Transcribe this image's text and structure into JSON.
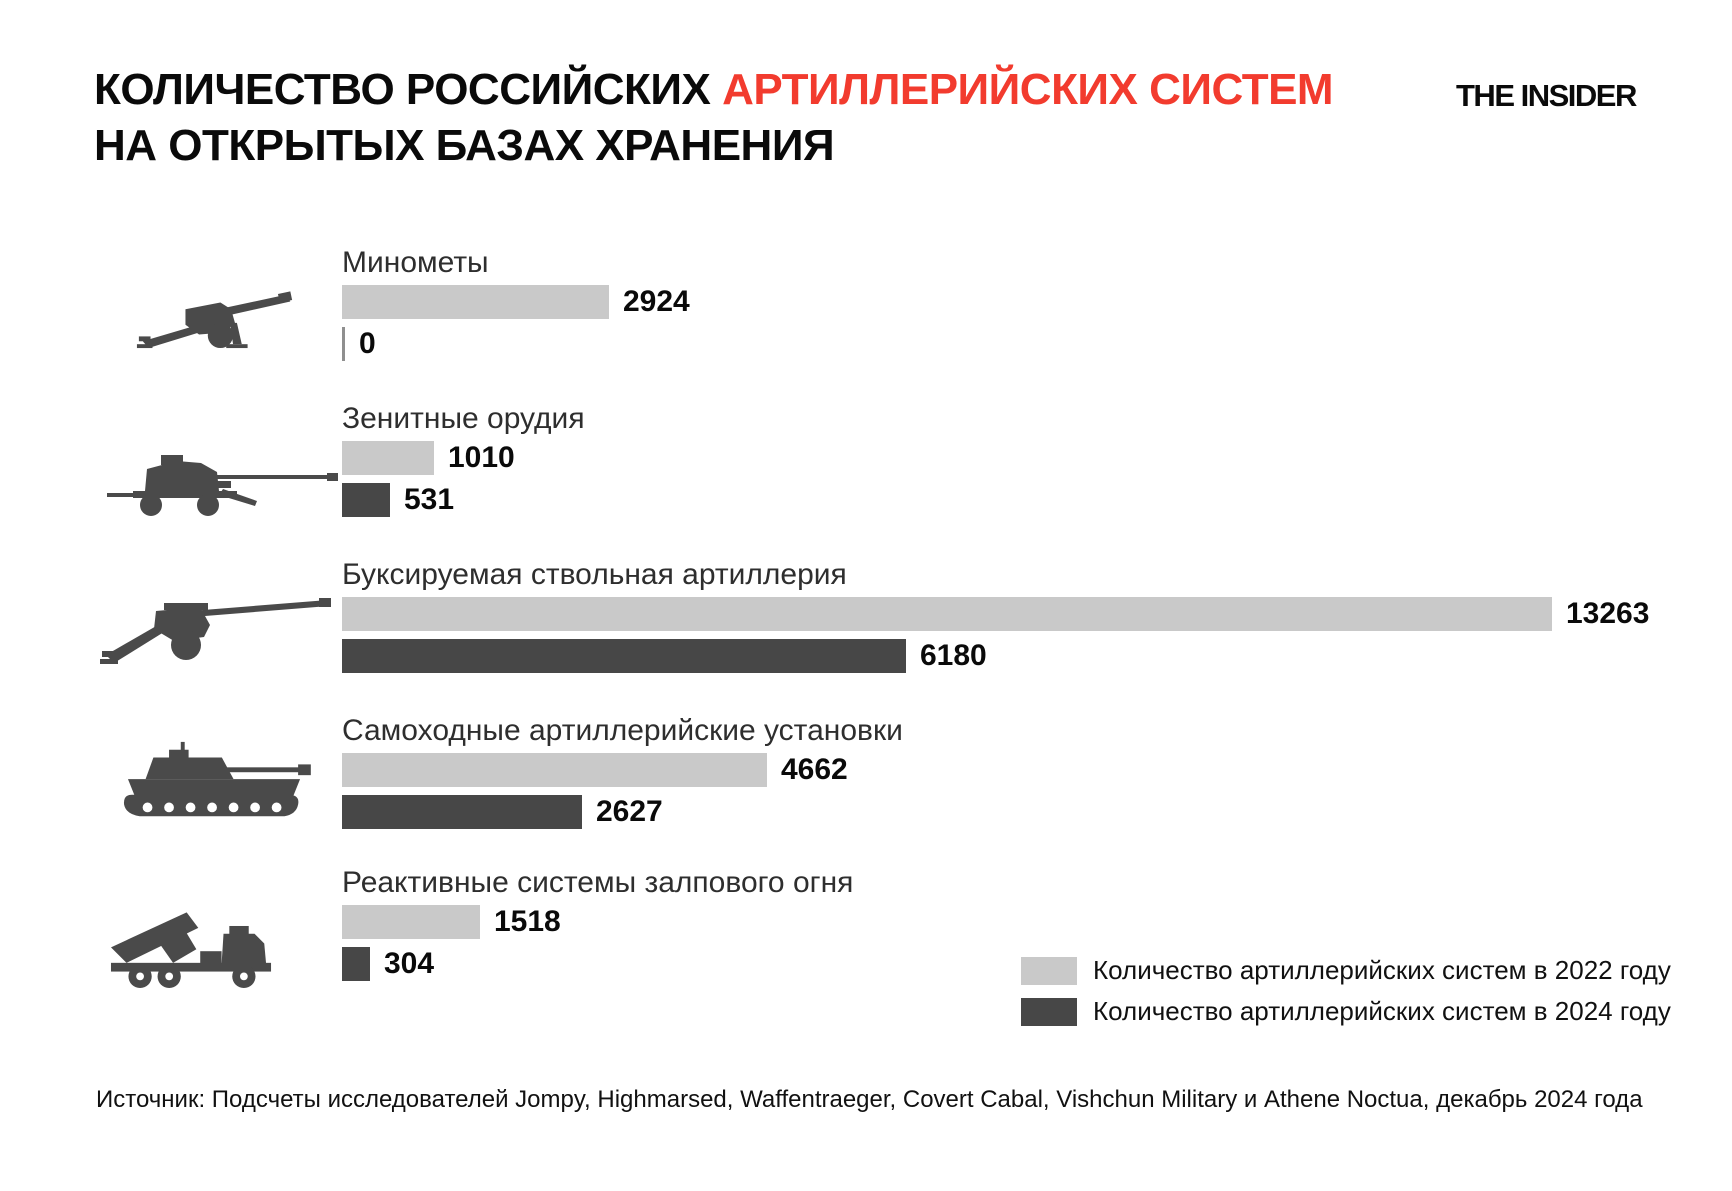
{
  "header": {
    "title_black": "КОЛИЧЕСТВО РОССИЙСКИХ",
    "title_red": "АРТИЛЛЕРИЙСКИХ СИСТЕМ",
    "title_line2": "НА ОТКРЫТЫХ БАЗАХ ХРАНЕНИЯ",
    "logo": "THE INSIDER"
  },
  "colors": {
    "accent_red": "#f23b2e",
    "bar_2022": "#c9c9c9",
    "bar_2024": "#474747",
    "zero_bar": "#8f8f8f",
    "icon": "#4a4a4a"
  },
  "chart_data": {
    "type": "bar",
    "orientation": "horizontal",
    "title": "Количество российских артиллерийских систем на открытых базах хранения",
    "categories": [
      "Минометы",
      "Зенитные орудия",
      "Буксируемая ствольная артиллерия",
      "Самоходные артиллерийские установки",
      "Реактивные системы залпового огня"
    ],
    "icons": [
      "howitzer-icon",
      "anti-aircraft-gun-icon",
      "towed-artillery-icon",
      "self-propelled-gun-icon",
      "mlrs-truck-icon"
    ],
    "series": [
      {
        "name": "Количество артиллерийских систем в 2022 году",
        "color": "#c9c9c9",
        "values": [
          2924,
          1010,
          13263,
          4662,
          1518
        ]
      },
      {
        "name": "Количество артиллерийских систем в 2024 году",
        "color": "#474747",
        "values": [
          0,
          531,
          6180,
          2627,
          304
        ]
      }
    ],
    "value_labels": [
      "2924",
      "0",
      "1010",
      "531",
      "13263",
      "6180",
      "4662",
      "2627",
      "1518",
      "304"
    ],
    "xlim": [
      0,
      13263
    ],
    "grid": false,
    "legend_position": "bottom-right"
  },
  "legend": {
    "items": [
      {
        "label": "Количество артиллерийских систем в 2022 году",
        "color": "#c9c9c9"
      },
      {
        "label": "Количество артиллерийских систем в 2024 году",
        "color": "#474747"
      }
    ]
  },
  "source": "Источник: Подсчеты исследователей Jompy, Highmarsed, Waffentraeger, Covert Cabal, Vishchun Military и Athene Noctua, декабрь 2024 года"
}
